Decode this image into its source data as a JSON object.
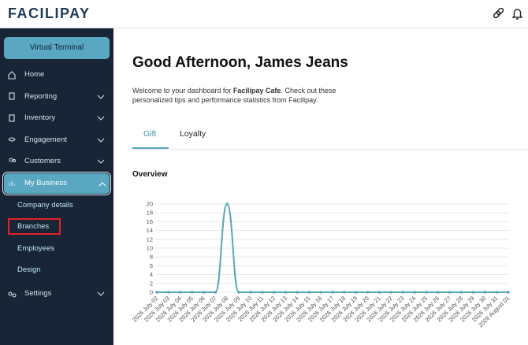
{
  "header": {
    "logo": "FACILIPAY"
  },
  "sidebar": {
    "button": "Virtual Terminal",
    "items": [
      "Home",
      "Reporting",
      "Inventory",
      "Engagement",
      "Customers",
      "My Business"
    ],
    "subitems": [
      "Company details",
      "Branches",
      "Employees",
      "Design"
    ],
    "settings": "Settings"
  },
  "main": {
    "greeting": "Good Afternoon, James Jeans",
    "welcome": [
      "Welcome to your dashboard for ",
      "Facilipay Cafe",
      ". Check out these personalized tips and performance statistics from Facilipay."
    ],
    "tabs": [
      "Gift",
      "Loyalty"
    ],
    "section": "Overview"
  },
  "chart_data": {
    "type": "line",
    "x": [
      "2026 July 02",
      "2026 July 03",
      "2026 July 04",
      "2026 July 05",
      "2026 July 06",
      "2026 July 07",
      "2026 July 08",
      "2026 July 09",
      "2026 July 10",
      "2026 July 11",
      "2026 July 12",
      "2026 July 13",
      "2026 July 14",
      "2026 July 15",
      "2026 July 16",
      "2026 July 17",
      "2026 July 18",
      "2026 July 19",
      "2026 July 20",
      "2026 July 21",
      "2026 July 22",
      "2026 July 23",
      "2026 July 24",
      "2026 July 25",
      "2026 July 26",
      "2026 July 27",
      "2026 July 28",
      "2026 July 29",
      "2026 July 30",
      "2026 July 31",
      "2026 August 01"
    ],
    "values": [
      0,
      0,
      0,
      0,
      0,
      0,
      20,
      0,
      0,
      0,
      0,
      0,
      0,
      0,
      0,
      0,
      0,
      0,
      0,
      0,
      0,
      0,
      0,
      0,
      0,
      0,
      0,
      0,
      0,
      0,
      0
    ],
    "color": "#5ba8b5",
    "ylim": [
      0,
      20
    ],
    "yticks": [
      0,
      2,
      4,
      6,
      8,
      10,
      12,
      14,
      16,
      18,
      20
    ],
    "grid": true
  }
}
